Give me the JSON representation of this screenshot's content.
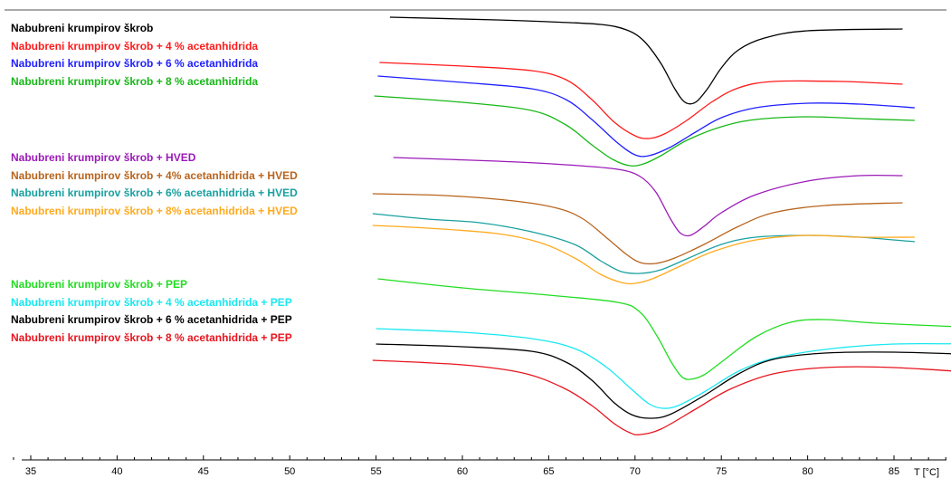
{
  "chart_data": {
    "type": "line",
    "xlabel": "T [°C]",
    "x_ticks": [
      "35",
      "40",
      "45",
      "50",
      "55",
      "60",
      "65",
      "70",
      "75",
      "80",
      "85"
    ],
    "xlim": [
      34,
      91
    ],
    "legend_groups": [
      [
        {
          "name": "Nabubreni krumpirov škrob",
          "color": "#000000"
        },
        {
          "name": "Nabubreni krumpirov škrob + 4 % acetanhidrida",
          "color": "#ff1a1a"
        },
        {
          "name": "Nabubreni krumpirov škrob + 6 % acetanhidrida",
          "color": "#2020ff"
        },
        {
          "name": "Nabubreni krumpirov škrob + 8 % acetanhidrida",
          "color": "#18b818"
        }
      ],
      [
        {
          "name": "Nabubreni krumpirov škrob + HVED",
          "color": "#9a1ab8"
        },
        {
          "name": "Nabubreni krumpirov škrob + 4% acetanhidrida + HVED",
          "color": "#b8641e"
        },
        {
          "name": "Nabubreni krumpirov škrob + 6% acetanhidrida + HVED",
          "color": "#1aa0a0"
        },
        {
          "name": "Nabubreni krumpirov škrob + 8% acetanhidrida + HVED",
          "color": "#ffaa1e"
        }
      ],
      [
        {
          "name": "Nabubreni krumpirov škrob + PEP",
          "color": "#22dd22"
        },
        {
          "name": "Nabubreni krumpirov škrob + 4 % acetanhidrida + PEP",
          "color": "#18e8f0"
        },
        {
          "name": "Nabubreni krumpirov škrob + 6 % acetanhidrida + PEP",
          "color": "#000000"
        },
        {
          "name": "Nabubreni krumpirov škrob + 8 % acetanhidrida + PEP",
          "color": "#e8141e"
        }
      ]
    ],
    "series": [
      {
        "name": "Nabubreni krumpirov škrob",
        "color": "#000000",
        "points": [
          [
            55.8,
            19
          ],
          [
            62,
            22
          ],
          [
            65,
            24
          ],
          [
            68,
            27
          ],
          [
            69.5,
            33
          ],
          [
            70.5,
            45
          ],
          [
            71.5,
            70
          ],
          [
            72.3,
            98
          ],
          [
            72.9,
            113
          ],
          [
            73.5,
            113
          ],
          [
            74.2,
            98
          ],
          [
            75,
            75
          ],
          [
            76,
            55
          ],
          [
            77.5,
            42
          ],
          [
            80,
            34
          ],
          [
            85.5,
            32
          ]
        ]
      },
      {
        "name": "Nabubreni krumpirov škrob + 4 % acetanhidrida",
        "color": "#ff1a1a",
        "points": [
          [
            55.2,
            69
          ],
          [
            60,
            73
          ],
          [
            64,
            78
          ],
          [
            66,
            88
          ],
          [
            67.5,
            110
          ],
          [
            68.8,
            135
          ],
          [
            70,
            150
          ],
          [
            70.8,
            153
          ],
          [
            71.7,
            148
          ],
          [
            73,
            133
          ],
          [
            74.5,
            112
          ],
          [
            76,
            97
          ],
          [
            78,
            90
          ],
          [
            82,
            90
          ],
          [
            85.5,
            93
          ]
        ]
      },
      {
        "name": "Nabubreni krumpirov škrob + 6 % acetanhidrida",
        "color": "#2020ff",
        "points": [
          [
            55.1,
            84
          ],
          [
            60,
            91
          ],
          [
            64,
            98
          ],
          [
            66,
            110
          ],
          [
            67.5,
            132
          ],
          [
            69,
            158
          ],
          [
            70,
            171
          ],
          [
            70.8,
            172
          ],
          [
            72,
            163
          ],
          [
            73.5,
            146
          ],
          [
            75,
            130
          ],
          [
            77,
            119
          ],
          [
            80,
            114
          ],
          [
            83,
            115
          ],
          [
            86.2,
            119
          ]
        ]
      },
      {
        "name": "Nabubreni krumpirov škrob + 8 % acetanhidrida",
        "color": "#18b818",
        "points": [
          [
            54.9,
            106
          ],
          [
            60,
            113
          ],
          [
            64,
            122
          ],
          [
            66,
            138
          ],
          [
            67.5,
            160
          ],
          [
            68.7,
            176
          ],
          [
            69.7,
            183
          ],
          [
            70.5,
            181
          ],
          [
            71.5,
            172
          ],
          [
            73,
            155
          ],
          [
            75,
            140
          ],
          [
            77,
            132
          ],
          [
            80,
            129
          ],
          [
            83,
            131
          ],
          [
            86.2,
            133
          ]
        ]
      },
      {
        "name": "Nabubreni krumpirov škrob + HVED",
        "color": "#9a1ab8",
        "points": [
          [
            56,
            174
          ],
          [
            62,
            178
          ],
          [
            66,
            182
          ],
          [
            69,
            187
          ],
          [
            70.3,
            195
          ],
          [
            71.2,
            212
          ],
          [
            72,
            240
          ],
          [
            72.6,
            257
          ],
          [
            73.2,
            260
          ],
          [
            74,
            250
          ],
          [
            75,
            235
          ],
          [
            77,
            215
          ],
          [
            80,
            200
          ],
          [
            83,
            194
          ],
          [
            85.5,
            194
          ]
        ]
      },
      {
        "name": "Nabubreni krumpirov škrob + 4% acetanhidrida + HVED",
        "color": "#b8641e",
        "points": [
          [
            54.8,
            214
          ],
          [
            59,
            216
          ],
          [
            63,
            222
          ],
          [
            65.5,
            230
          ],
          [
            67,
            242
          ],
          [
            68.5,
            265
          ],
          [
            69.5,
            281
          ],
          [
            70.3,
            290
          ],
          [
            71.2,
            291
          ],
          [
            72.3,
            285
          ],
          [
            74,
            270
          ],
          [
            76,
            250
          ],
          [
            78,
            235
          ],
          [
            81,
            227
          ],
          [
            85.5,
            224
          ]
        ]
      },
      {
        "name": "Nabubreni krumpirov škrob + 6% acetanhidrida + HVED",
        "color": "#1aa0a0",
        "points": [
          [
            54.8,
            236
          ],
          [
            58,
            242
          ],
          [
            61,
            246
          ],
          [
            64,
            256
          ],
          [
            66.5,
            270
          ],
          [
            68,
            288
          ],
          [
            69.2,
            300
          ],
          [
            70.3,
            302
          ],
          [
            71.5,
            298
          ],
          [
            73,
            286
          ],
          [
            75,
            270
          ],
          [
            77,
            262
          ],
          [
            80,
            260
          ],
          [
            83,
            262
          ],
          [
            86.2,
            267
          ]
        ]
      },
      {
        "name": "Nabubreni krumpirov škrob + 8% acetanhidrida + HVED",
        "color": "#ffaa1e",
        "points": [
          [
            54.8,
            249
          ],
          [
            58,
            252
          ],
          [
            62,
            258
          ],
          [
            64.5,
            268
          ],
          [
            66.5,
            285
          ],
          [
            68,
            303
          ],
          [
            69.2,
            312
          ],
          [
            70,
            313
          ],
          [
            71,
            308
          ],
          [
            72.5,
            295
          ],
          [
            74.5,
            278
          ],
          [
            77,
            265
          ],
          [
            80,
            260
          ],
          [
            83,
            262
          ],
          [
            86.2,
            262
          ]
        ]
      },
      {
        "name": "Nabubreni krumpirov škrob + PEP",
        "color": "#22dd22",
        "points": [
          [
            55.1,
            308
          ],
          [
            60,
            318
          ],
          [
            65,
            326
          ],
          [
            69,
            334
          ],
          [
            70.3,
            345
          ],
          [
            71.3,
            372
          ],
          [
            72.1,
            400
          ],
          [
            72.7,
            416
          ],
          [
            73.2,
            419
          ],
          [
            74,
            414
          ],
          [
            75,
            400
          ],
          [
            77,
            372
          ],
          [
            79,
            356
          ],
          [
            81,
            353
          ],
          [
            84,
            357
          ],
          [
            88.8,
            361
          ]
        ]
      },
      {
        "name": "Nabubreni krumpirov škrob + 4 % acetanhidrida + PEP",
        "color": "#18e8f0",
        "points": [
          [
            55,
            363
          ],
          [
            60,
            367
          ],
          [
            64,
            374
          ],
          [
            66.5,
            385
          ],
          [
            68.3,
            405
          ],
          [
            69.8,
            430
          ],
          [
            70.8,
            446
          ],
          [
            71.6,
            451
          ],
          [
            72.5,
            448
          ],
          [
            74,
            433
          ],
          [
            76,
            410
          ],
          [
            78,
            396
          ],
          [
            81,
            386
          ],
          [
            85,
            380
          ],
          [
            89.7,
            380
          ]
        ]
      },
      {
        "name": "Nabubreni krumpirov škrob + 6 % acetanhidrida + PEP",
        "color": "#000000",
        "points": [
          [
            55,
            380
          ],
          [
            60,
            383
          ],
          [
            64,
            388
          ],
          [
            66,
            400
          ],
          [
            67.5,
            420
          ],
          [
            68.8,
            445
          ],
          [
            69.8,
            458
          ],
          [
            70.8,
            462
          ],
          [
            72,
            458
          ],
          [
            74,
            437
          ],
          [
            76,
            413
          ],
          [
            78,
            397
          ],
          [
            81,
            390
          ],
          [
            85,
            389
          ],
          [
            90.2,
            392
          ]
        ]
      },
      {
        "name": "Nabubreni krumpirov škrob + 8 % acetanhidrida + PEP",
        "color": "#e8141e",
        "points": [
          [
            54.8,
            398
          ],
          [
            60,
            403
          ],
          [
            63.5,
            412
          ],
          [
            65.8,
            428
          ],
          [
            67.5,
            448
          ],
          [
            68.8,
            468
          ],
          [
            69.7,
            478
          ],
          [
            70.3,
            480
          ],
          [
            71.5,
            474
          ],
          [
            73.5,
            452
          ],
          [
            75.5,
            430
          ],
          [
            78,
            413
          ],
          [
            81,
            406
          ],
          [
            85,
            406
          ],
          [
            90.8,
            413
          ]
        ]
      }
    ]
  }
}
